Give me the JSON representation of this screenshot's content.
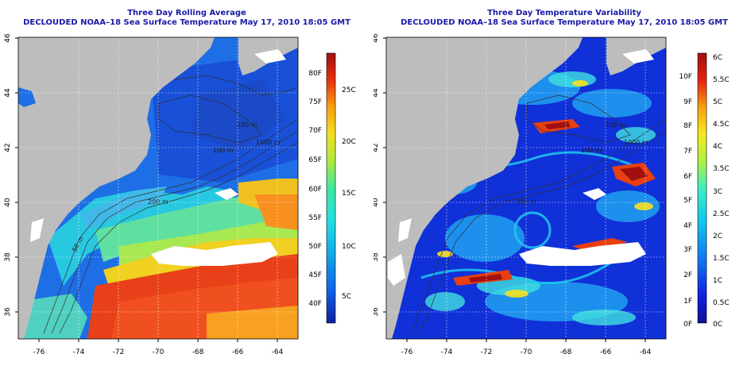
{
  "left": {
    "title": "Three Day Rolling Average",
    "subtitle": "DECLOUDED NOAA–18 Sea Surface Temperature May 17, 2010 18:05 GMT",
    "colorbar_f": [
      "40F",
      "45F",
      "50F",
      "55F",
      "60F",
      "65F",
      "70F",
      "75F",
      "80F"
    ],
    "colorbar_c": [
      "5C",
      "10C",
      "15C",
      "20C",
      "25C"
    ],
    "contour_labels": [
      "200 m",
      "1000 m",
      "200 m",
      "200 m",
      "50 m"
    ]
  },
  "right": {
    "title": "Three Day Temperature Variability",
    "subtitle": "DECLOUDED NOAA–18 Sea Surface Temperature May 17, 2010 18:05 GMT",
    "colorbar_f": [
      "0F",
      "1F",
      "2F",
      "3F",
      "4F",
      "5F",
      "6F",
      "7F",
      "8F",
      "9F",
      "10F"
    ],
    "colorbar_c": [
      "0C",
      "0.5C",
      "1C",
      "1.5C",
      "2C",
      "2.5C",
      "3C",
      "3.5C",
      "4C",
      "4.5C",
      "5C",
      "5.5C",
      "6C"
    ],
    "contour_labels": [
      "200 m",
      "1000 m",
      "200 m",
      "200 m"
    ]
  },
  "axes": {
    "x_ticks": [
      "-76",
      "-74",
      "-72",
      "-70",
      "-68",
      "-66",
      "-64"
    ],
    "y_ticks": [
      "36",
      "38",
      "40",
      "42",
      "44",
      "46"
    ]
  },
  "colors": {
    "land": "#bdbdbd",
    "cloud": "#ffffff",
    "title": "#1a1aa8"
  }
}
